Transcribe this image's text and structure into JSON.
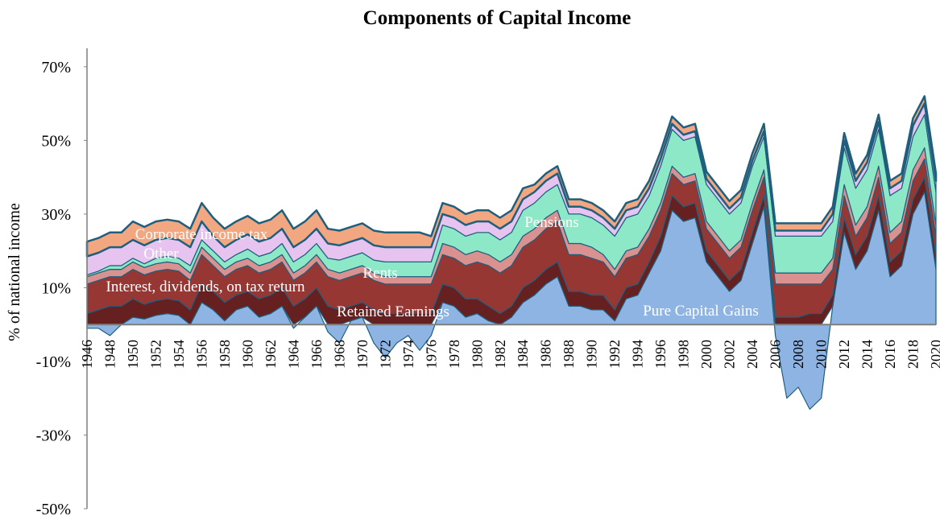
{
  "chart_data": {
    "type": "area",
    "title": "Components of Capital Income",
    "y_label": "% of national income",
    "categories": [
      "1946",
      null,
      "1948",
      null,
      "1950",
      null,
      "1952",
      null,
      "1954",
      null,
      "1956",
      null,
      "1958",
      null,
      "1960",
      null,
      "1962",
      null,
      "1964",
      null,
      "1966",
      null,
      "1968",
      null,
      "1970",
      null,
      "1972",
      null,
      "1974",
      null,
      "1976",
      null,
      "1978",
      null,
      "1980",
      null,
      "1982",
      null,
      "1984",
      null,
      "1986",
      null,
      "1988",
      null,
      "1990",
      null,
      "1992",
      null,
      "1994",
      null,
      "1996",
      null,
      "1998",
      null,
      "2000",
      null,
      "2002",
      null,
      "2004",
      null,
      "2006",
      null,
      "2008",
      null,
      "2010",
      null,
      "2012",
      null,
      "2014",
      null,
      "2016",
      null,
      "2018",
      null,
      "2020"
    ],
    "ylim": [
      -50,
      75
    ],
    "yticks": [
      {
        "value": -50,
        "label": "-50%"
      },
      {
        "value": -30,
        "label": "-30%"
      },
      {
        "value": -10,
        "label": "-10%"
      },
      {
        "value": 10,
        "label": "10%"
      },
      {
        "value": 30,
        "label": "30%"
      },
      {
        "value": 50,
        "label": "50%"
      },
      {
        "value": 70,
        "label": "70%"
      }
    ],
    "series": [
      {
        "name": "Pure Capital Gains",
        "color": "#8eb4e3",
        "values": [
          -1,
          -1,
          -3,
          0,
          2,
          1.5,
          2.5,
          3,
          2.5,
          0,
          6,
          4,
          1,
          4,
          5,
          2,
          3,
          5,
          -1,
          2,
          5,
          -2,
          -5,
          1,
          2,
          -5,
          -9,
          -5,
          -3,
          -7,
          -3,
          6,
          5,
          2,
          3,
          1,
          0,
          2,
          6,
          8,
          11,
          13,
          5,
          5,
          4,
          4,
          1,
          7,
          8,
          14,
          20,
          31,
          28,
          29,
          17,
          13,
          9,
          12,
          22,
          32,
          -3,
          -20,
          -17,
          -23,
          -20,
          5,
          25,
          15,
          20,
          31,
          13,
          16,
          30,
          36,
          15
        ]
      },
      {
        "name": "Retained Earnings",
        "color": "#65201f",
        "values": [
          3,
          4,
          5,
          5,
          5,
          4,
          4,
          4,
          4,
          4,
          5,
          5,
          5,
          4,
          4,
          5,
          5,
          5,
          5,
          5,
          5,
          5,
          4,
          4,
          4,
          4,
          3,
          3,
          3,
          3,
          3,
          5,
          5,
          5,
          4,
          4,
          3,
          3,
          4,
          4,
          4,
          4,
          4,
          4,
          4,
          4,
          3,
          3,
          3,
          3,
          4,
          4,
          4,
          4,
          3,
          3,
          3,
          3,
          3,
          3,
          2,
          2,
          2,
          3,
          3,
          3,
          4,
          4,
          4,
          4,
          4,
          4,
          4,
          4,
          4
        ]
      },
      {
        "name": "Interest, dividends, on tax return",
        "color": "#963734",
        "values": [
          8,
          8,
          8,
          8,
          8,
          8,
          8,
          8,
          8,
          8,
          8,
          7,
          7,
          7,
          7,
          7,
          7,
          7,
          7,
          7,
          7,
          8,
          8,
          8,
          8,
          8,
          8,
          8,
          8,
          8,
          8,
          8,
          8,
          9,
          10,
          11,
          11,
          11,
          11,
          11,
          11,
          11,
          10,
          10,
          10,
          9,
          9,
          8,
          8,
          7,
          7,
          6,
          6,
          6,
          6,
          6,
          6,
          6,
          6,
          5,
          9,
          9,
          9,
          8,
          8,
          7,
          6,
          5,
          5,
          5,
          5,
          5,
          5,
          5,
          5
        ]
      },
      {
        "name": "Rents",
        "color": "#d9928f",
        "values": [
          2,
          2,
          2,
          2,
          2,
          2,
          2,
          2,
          2,
          2,
          2,
          2,
          2,
          2,
          2,
          2,
          2,
          2,
          2,
          2,
          2,
          2,
          2,
          2,
          2,
          2,
          2,
          2,
          2,
          2,
          2,
          3,
          3,
          3,
          3,
          3,
          3,
          3,
          3,
          3,
          3,
          3,
          3,
          3,
          3,
          2,
          2,
          2,
          2,
          2,
          2,
          2,
          2,
          2,
          2,
          2,
          2,
          2,
          2,
          2,
          3,
          3,
          3,
          3,
          3,
          3,
          3,
          3,
          3,
          3,
          3,
          3,
          3,
          3,
          3
        ]
      },
      {
        "name": "Pensions",
        "color": "#8de8c8",
        "values": [
          0.5,
          0.5,
          1,
          1,
          1,
          1,
          1.5,
          1.5,
          1.5,
          2,
          2,
          2,
          2,
          2,
          2.5,
          2.5,
          2.5,
          3,
          3,
          3,
          3,
          3,
          3.5,
          3.5,
          3.5,
          3.5,
          4,
          4,
          4,
          4,
          4,
          5,
          5,
          5,
          5,
          6,
          6,
          6,
          7,
          7,
          7,
          7,
          8,
          8,
          8,
          8,
          9,
          9,
          9,
          9,
          10,
          10,
          10,
          10,
          10,
          10,
          10,
          10,
          10,
          9,
          10,
          10,
          10,
          10,
          10,
          10,
          10,
          10,
          10,
          10,
          10,
          9,
          9,
          9,
          9
        ]
      },
      {
        "name": "Other",
        "color": "#e7c4f0",
        "values": [
          5,
          5,
          5,
          5,
          5,
          5,
          5,
          5,
          5,
          5,
          5,
          4,
          4,
          4,
          4,
          4,
          4,
          4,
          4,
          4,
          4,
          4,
          4,
          4,
          4,
          4,
          4,
          4,
          4,
          4,
          4,
          3,
          3,
          3,
          3,
          3,
          3,
          3,
          3,
          3,
          3,
          3,
          2,
          2,
          2,
          2,
          2,
          2,
          2,
          2,
          2,
          1.5,
          1.5,
          1.5,
          1.5,
          1.5,
          1.5,
          1.5,
          1.5,
          1.5,
          1.5,
          1.5,
          1.5,
          1.5,
          1.5,
          2,
          2,
          2,
          2,
          2,
          2,
          2,
          3,
          3,
          3
        ]
      },
      {
        "name": "Corporate income tax",
        "color": "#f2a780",
        "values": [
          4,
          4,
          4,
          4,
          5,
          5,
          5,
          5,
          5,
          5,
          5,
          5,
          5,
          5,
          5,
          5,
          5,
          5,
          5,
          5,
          5,
          4,
          4,
          4,
          4,
          4,
          4,
          4,
          4,
          4,
          3,
          3,
          3,
          3,
          3,
          3,
          3,
          3,
          3,
          2,
          2,
          2,
          2,
          2,
          2,
          2,
          2,
          2,
          2,
          2,
          2,
          2,
          2,
          2,
          2,
          2,
          2,
          2,
          2,
          2,
          2,
          2,
          2,
          2,
          2,
          2,
          2,
          2,
          2,
          2,
          2,
          2,
          2,
          2,
          2
        ]
      }
    ]
  }
}
